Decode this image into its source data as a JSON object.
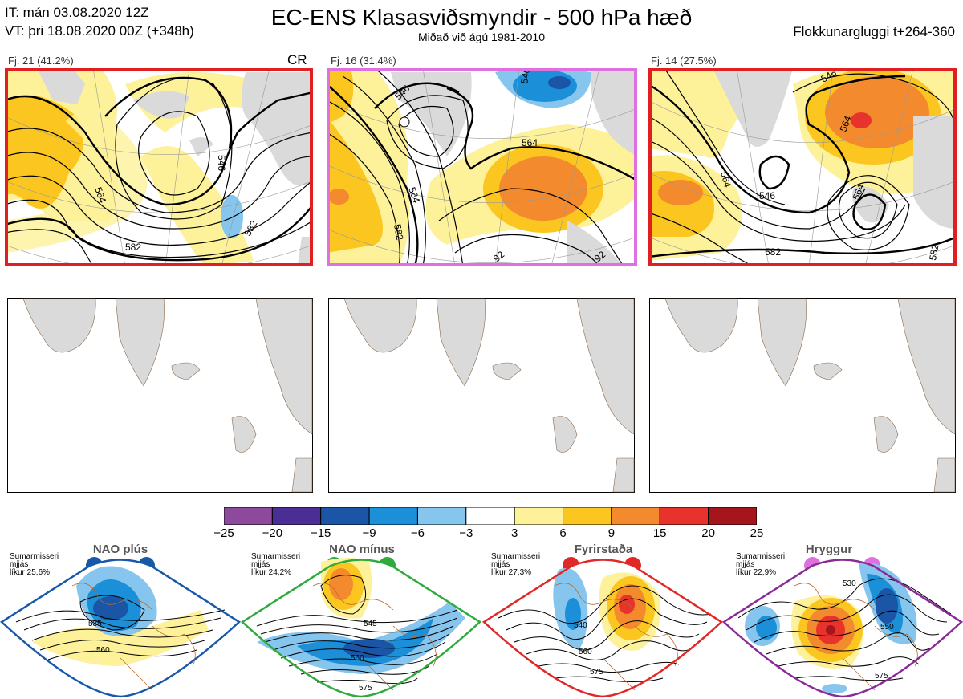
{
  "header": {
    "init_time": "IT: mán 03.08.2020 12Z",
    "valid_time": "VT: þri 18.08.2020 00Z  (+348h)",
    "title": "EC-ENS Klasasviðsmyndir - 500 hPa hæð",
    "subtitle": "Miðað við ágú 1981-2010",
    "window": "Flokkunargluggi t+264-360"
  },
  "clusters": [
    {
      "label": "Fj. 21 (41.2%)",
      "tag": "CR",
      "frame_color": "#e02020",
      "contour_labels": [
        "546",
        "564",
        "564",
        "582",
        "582",
        "546",
        "564"
      ]
    },
    {
      "label": "Fj. 16 (31.4%)",
      "tag": "",
      "frame_color": "#e070e0",
      "contour_labels": [
        "546",
        "564",
        "564",
        "582",
        "546",
        "92",
        "92"
      ]
    },
    {
      "label": "Fj. 14 (27.5%)",
      "tag": "",
      "frame_color": "#e02020",
      "contour_labels": [
        "546",
        "564",
        "546",
        "564",
        "564",
        "582",
        "582"
      ]
    }
  ],
  "colorbar": {
    "ticks": [
      "−25",
      "−20",
      "−15",
      "−9",
      "−6",
      "−3",
      "3",
      "6",
      "9",
      "15",
      "20",
      "25"
    ],
    "colors": [
      "#8d4a9c",
      "#4b2d96",
      "#1a55a6",
      "#1b8fd8",
      "#86c6ee",
      "#ffffff",
      "#fdf19a",
      "#fbc61f",
      "#f48a2e",
      "#e8332d",
      "#a5161c"
    ]
  },
  "regimes": [
    {
      "name": "NAO plús",
      "note_lines": [
        "Sumarmisseri",
        "mjjás",
        "líkur 25,6%"
      ],
      "color": "#1858a8",
      "contour_labels": [
        "535",
        "560"
      ]
    },
    {
      "name": "NAO mínus",
      "note_lines": [
        "Sumarmisseri",
        "mjjás",
        "líkur 24,2%"
      ],
      "color": "#2faa3c",
      "contour_labels": [
        "545",
        "560",
        "575"
      ]
    },
    {
      "name": "Fyrirstaða",
      "note_lines": [
        "Sumarmisseri",
        "mjjás",
        "líkur 27,3%"
      ],
      "color": "#e02828",
      "contour_labels": [
        "540",
        "560",
        "575"
      ]
    },
    {
      "name": "Hryggur",
      "note_lines": [
        "Sumarmisseri",
        "mjjás",
        "líkur 22,9%"
      ],
      "color": "#e070e0",
      "contour_labels": [
        "530",
        "550",
        "575"
      ]
    }
  ]
}
